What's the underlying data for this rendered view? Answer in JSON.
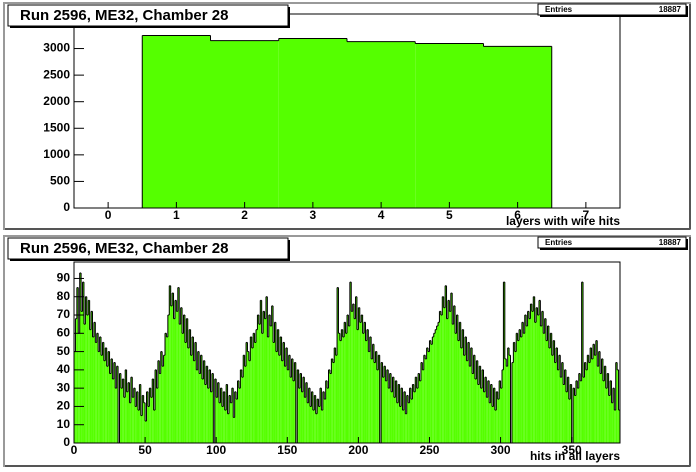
{
  "chart_data": [
    {
      "type": "histogram",
      "title": "Run 2596, ME32, Chamber 28",
      "stats_label": "Entries",
      "stats_value": 18887,
      "x_label": "layers with wire hits",
      "color": "#55ff00",
      "bins": [
        0.5,
        1.5,
        2.5,
        3.5,
        4.5,
        5.5,
        6.5
      ],
      "values": [
        3245,
        3150,
        3190,
        3130,
        3095,
        3040
      ],
      "xlim": [
        -0.5,
        7.5
      ],
      "xticks": [
        0,
        1,
        2,
        3,
        4,
        5,
        6,
        7
      ],
      "ylim": [
        0,
        3650
      ],
      "yticks": [
        0,
        500,
        1000,
        1500,
        2000,
        2500,
        3000
      ]
    },
    {
      "type": "histogram",
      "title": "Run 2596, ME32, Chamber 28",
      "stats_label": "Entries",
      "stats_value": 18887,
      "x_label": "hits in all layers",
      "color": "#55ff00",
      "bins": [
        0,
        1,
        2,
        3,
        4,
        5,
        6,
        7,
        8,
        9,
        10,
        11,
        12,
        13,
        14,
        15,
        16,
        17,
        18,
        19,
        20,
        21,
        22,
        23,
        24,
        25,
        26,
        27,
        28,
        29,
        30,
        31,
        32,
        33,
        34,
        35,
        36,
        37,
        38,
        39,
        40,
        41,
        42,
        43,
        44,
        45,
        46,
        47,
        48,
        49,
        50,
        51,
        52,
        53,
        54,
        55,
        56,
        57,
        58,
        59,
        60,
        61,
        62,
        63,
        64,
        65,
        66,
        67,
        68,
        69,
        70,
        71,
        72,
        73,
        74,
        75,
        76,
        77,
        78,
        79,
        80,
        81,
        82,
        83,
        84,
        85,
        86,
        87,
        88,
        89,
        90,
        91,
        92,
        93,
        94,
        95,
        96,
        97,
        98,
        99,
        100,
        101,
        102,
        103,
        104,
        105,
        106,
        107,
        108,
        109,
        110,
        111,
        112,
        113,
        114,
        115,
        116,
        117,
        118,
        119,
        120,
        121,
        122,
        123,
        124,
        125,
        126,
        127,
        128,
        129,
        130,
        131,
        132,
        133,
        134,
        135,
        136,
        137,
        138,
        139,
        140,
        141,
        142,
        143,
        144,
        145,
        146,
        147,
        148,
        149,
        150,
        151,
        152,
        153,
        154,
        155,
        156,
        157,
        158,
        159,
        160,
        161,
        162,
        163,
        164,
        165,
        166,
        167,
        168,
        169,
        170,
        171,
        172,
        173,
        174,
        175,
        176,
        177,
        178,
        179,
        180,
        181,
        182,
        183,
        184,
        185,
        186,
        187,
        188,
        189,
        190,
        191,
        192,
        193,
        194,
        195,
        196,
        197,
        198,
        199,
        200,
        201,
        202,
        203,
        204,
        205,
        206,
        207,
        208,
        209,
        210,
        211,
        212,
        213,
        214,
        215,
        216,
        217,
        218,
        219,
        220,
        221,
        222,
        223,
        224,
        225,
        226,
        227,
        228,
        229,
        230,
        231,
        232,
        233,
        234,
        235,
        236,
        237,
        238,
        239,
        240,
        241,
        242,
        243,
        244,
        245,
        246,
        247,
        248,
        249,
        250,
        251,
        252,
        253,
        254,
        255,
        256,
        257,
        258,
        259,
        260,
        261,
        262,
        263,
        264,
        265,
        266,
        267,
        268,
        269,
        270,
        271,
        272,
        273,
        274,
        275,
        276,
        277,
        278,
        279,
        280,
        281,
        282,
        283,
        284,
        285,
        286,
        287,
        288,
        289,
        290,
        291,
        292,
        293,
        294,
        295,
        296,
        297,
        298,
        299,
        300,
        301,
        302,
        303,
        304,
        305,
        306,
        307,
        308,
        309,
        310,
        311,
        312,
        313,
        314,
        315,
        316,
        317,
        318,
        319,
        320,
        321,
        322,
        323,
        324,
        325,
        326,
        327,
        328,
        329,
        330,
        331,
        332,
        333,
        334,
        335,
        336,
        337,
        338,
        339,
        340,
        341,
        342,
        343,
        344,
        345,
        346,
        347,
        348,
        349,
        350,
        351,
        352,
        353,
        354,
        355,
        356,
        357,
        358,
        359,
        360,
        361,
        362,
        363,
        364,
        365,
        366,
        367,
        368,
        369,
        370,
        371,
        372,
        373,
        374,
        375,
        376,
        377,
        378,
        379,
        380,
        381,
        382,
        383,
        384
      ],
      "values": [
        50,
        68,
        85,
        60,
        93,
        72,
        88,
        65,
        80,
        70,
        78,
        62,
        72,
        58,
        66,
        55,
        60,
        50,
        58,
        48,
        55,
        45,
        52,
        42,
        50,
        38,
        46,
        35,
        44,
        30,
        42,
        0,
        38,
        30,
        35,
        25,
        40,
        28,
        33,
        22,
        36,
        25,
        30,
        20,
        28,
        18,
        32,
        15,
        26,
        22,
        12,
        28,
        20,
        30,
        25,
        35,
        18,
        40,
        30,
        45,
        38,
        50,
        42,
        48,
        60,
        58,
        70,
        86,
        75,
        82,
        68,
        78,
        72,
        85,
        65,
        74,
        60,
        70,
        55,
        68,
        52,
        62,
        48,
        58,
        45,
        55,
        40,
        50,
        38,
        48,
        35,
        45,
        32,
        42,
        30,
        40,
        28,
        38,
        0,
        35,
        25,
        33,
        22,
        30,
        20,
        28,
        18,
        32,
        16,
        26,
        22,
        30,
        14,
        28,
        24,
        34,
        30,
        40,
        36,
        48,
        42,
        55,
        50,
        45,
        58,
        52,
        60,
        55,
        62,
        70,
        65,
        78,
        60,
        72,
        68,
        80,
        58,
        70,
        64,
        75,
        55,
        66,
        50,
        62,
        48,
        58,
        45,
        55,
        42,
        52,
        40,
        48,
        36,
        46,
        34,
        44,
        0,
        40,
        30,
        38,
        28,
        36,
        25,
        33,
        22,
        30,
        20,
        28,
        18,
        26,
        16,
        24,
        20,
        30,
        18,
        28,
        24,
        34,
        30,
        40,
        38,
        46,
        44,
        52,
        48,
        85,
        60,
        56,
        62,
        58,
        66,
        60,
        70,
        64,
        88,
        72,
        76,
        68,
        80,
        62,
        74,
        66,
        70,
        60,
        66,
        56,
        62,
        50,
        58,
        46,
        54,
        44,
        50,
        40,
        48,
        0,
        44,
        36,
        42,
        34,
        40,
        30,
        38,
        28,
        36,
        25,
        34,
        22,
        32,
        20,
        30,
        18,
        28,
        16,
        26,
        22,
        30,
        24,
        32,
        28,
        36,
        30,
        38,
        34,
        44,
        40,
        48,
        46,
        52,
        50,
        56,
        54,
        58,
        60,
        62,
        64,
        66,
        72,
        70,
        80,
        74,
        86,
        68,
        78,
        72,
        82,
        65,
        75,
        60,
        70,
        56,
        66,
        52,
        62,
        48,
        58,
        45,
        55,
        42,
        52,
        38,
        48,
        35,
        45,
        32,
        42,
        30,
        40,
        28,
        36,
        25,
        34,
        22,
        32,
        20,
        30,
        18,
        28,
        24,
        34,
        30,
        40,
        88,
        46,
        42,
        52,
        48,
        0,
        44,
        55,
        50,
        60,
        56,
        62,
        58,
        66,
        60,
        70,
        64,
        72,
        68,
        76,
        72,
        80,
        66,
        74,
        70,
        78,
        64,
        72,
        60,
        68,
        56,
        64,
        52,
        60,
        48,
        56,
        44,
        52,
        40,
        48,
        36,
        44,
        32,
        40,
        28,
        36,
        24,
        32,
        0,
        30,
        26,
        34,
        30,
        38,
        34,
        88,
        36,
        44,
        40,
        48,
        44,
        52,
        46,
        54,
        48,
        56,
        42,
        50,
        38,
        46,
        34,
        42,
        30,
        38,
        26,
        34,
        22,
        30,
        18,
        44,
        40,
        18
      ],
      "xlim": [
        0,
        384
      ],
      "xticks": [
        0,
        50,
        100,
        150,
        200,
        250,
        300,
        350
      ],
      "ylim": [
        0,
        99
      ],
      "yticks": [
        0,
        10,
        20,
        30,
        40,
        50,
        60,
        70,
        80,
        90
      ]
    }
  ]
}
